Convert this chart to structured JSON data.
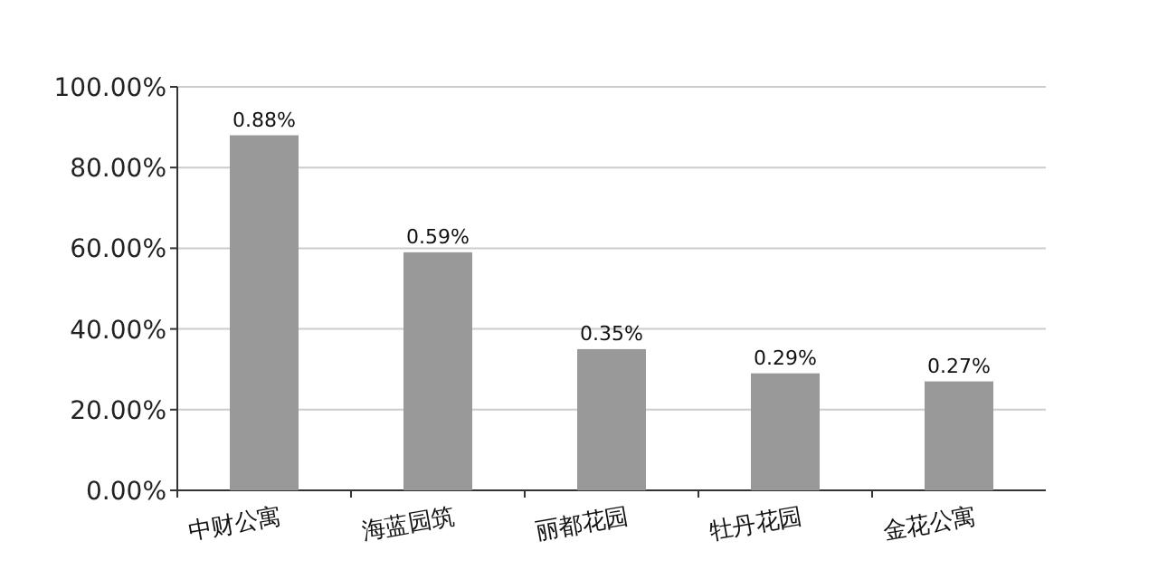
{
  "chart_data": {
    "type": "bar",
    "categories": [
      "中财公寓",
      "海蓝园筑",
      "丽都花园",
      "牡丹花园",
      "金花公寓"
    ],
    "values": [
      0.88,
      0.59,
      0.35,
      0.29,
      0.27
    ],
    "value_labels": [
      "0.88%",
      "0.59%",
      "0.35%",
      "0.29%",
      "0.27%"
    ],
    "color": "#999999",
    "ylim": [
      0,
      1
    ],
    "yticks": [
      {
        "value": 0,
        "label": "0.00%"
      },
      {
        "value": 0.2,
        "label": "20.00%"
      },
      {
        "value": 0.4,
        "label": "40.00%"
      },
      {
        "value": 0.6,
        "label": "60.00%"
      },
      {
        "value": 0.8,
        "label": "80.00%"
      },
      {
        "value": 1,
        "label": "100.00%"
      }
    ],
    "grid": "y"
  }
}
